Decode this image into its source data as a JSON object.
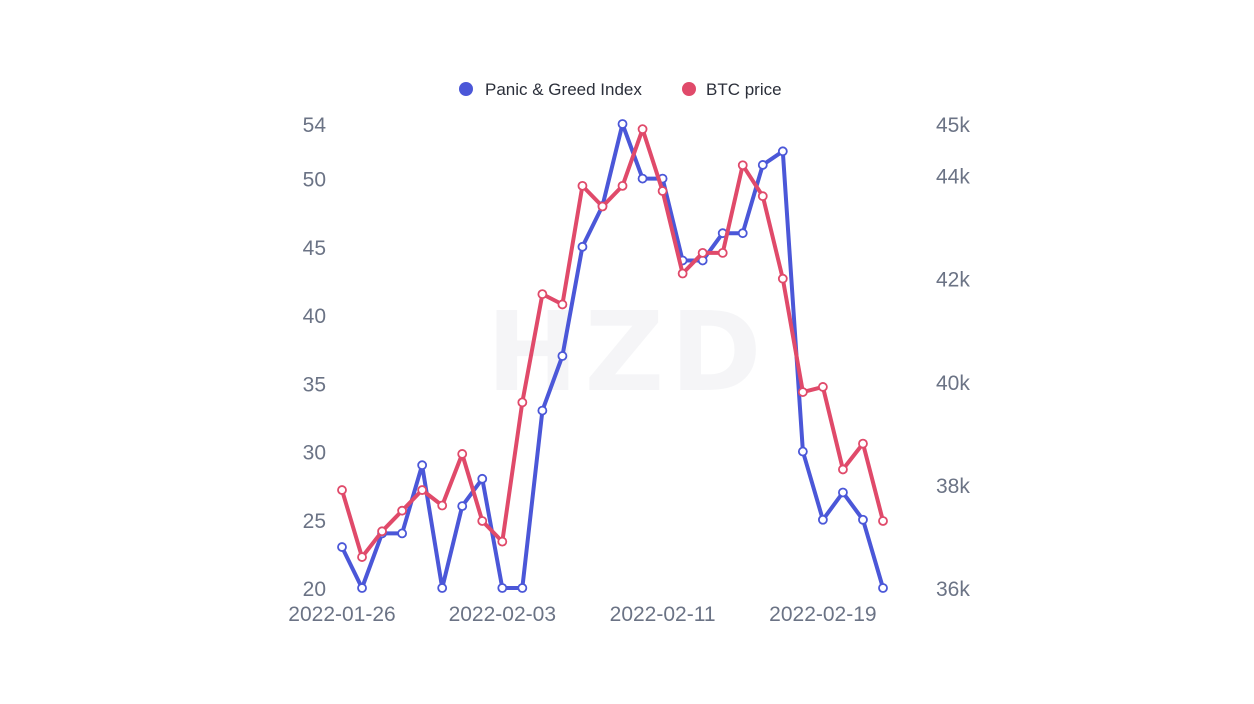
{
  "watermark": "HZD",
  "chart_data": {
    "type": "line",
    "legend_position": "top-center",
    "grid": false,
    "categories": [
      "2022-01-26",
      "2022-01-27",
      "2022-01-28",
      "2022-01-29",
      "2022-01-30",
      "2022-01-31",
      "2022-02-01",
      "2022-02-02",
      "2022-02-03",
      "2022-02-04",
      "2022-02-05",
      "2022-02-06",
      "2022-02-07",
      "2022-02-08",
      "2022-02-09",
      "2022-02-10",
      "2022-02-11",
      "2022-02-12",
      "2022-02-13",
      "2022-02-14",
      "2022-02-15",
      "2022-02-16",
      "2022-02-17",
      "2022-02-18",
      "2022-02-19",
      "2022-02-20",
      "2022-02-21",
      "2022-02-22"
    ],
    "x_tick_labels": [
      "2022-01-26",
      "2022-02-03",
      "2022-02-11",
      "2022-02-19"
    ],
    "y_left": {
      "ticks": [
        "54",
        "50",
        "45",
        "40",
        "35",
        "30",
        "25",
        "20"
      ],
      "tick_values": [
        54,
        50,
        45,
        40,
        35,
        30,
        25,
        20
      ],
      "range": [
        20,
        54
      ]
    },
    "y_right": {
      "ticks": [
        "45k",
        "44k",
        "42k",
        "40k",
        "38k",
        "36k"
      ],
      "tick_values": [
        45000,
        44000,
        42000,
        40000,
        38000,
        36000
      ],
      "range": [
        36000,
        45000
      ]
    },
    "series": [
      {
        "name": "Panic & Greed Index",
        "axis": "left",
        "color": "#4b57d8",
        "values": [
          23,
          20,
          24,
          24,
          29,
          20,
          26,
          28,
          20,
          20,
          33,
          37,
          45,
          48,
          54,
          50,
          50,
          44,
          44,
          46,
          46,
          51,
          52,
          30,
          25,
          27,
          25,
          20
        ]
      },
      {
        "name": "BTC price",
        "axis": "right",
        "color": "#e04a6a",
        "values": [
          37900,
          36600,
          37100,
          37500,
          37900,
          37600,
          38600,
          37300,
          36900,
          39600,
          41700,
          41500,
          43800,
          43400,
          43800,
          44900,
          43700,
          42100,
          42500,
          42500,
          44200,
          43600,
          42000,
          39800,
          39900,
          38300,
          38800,
          37300
        ]
      }
    ]
  }
}
